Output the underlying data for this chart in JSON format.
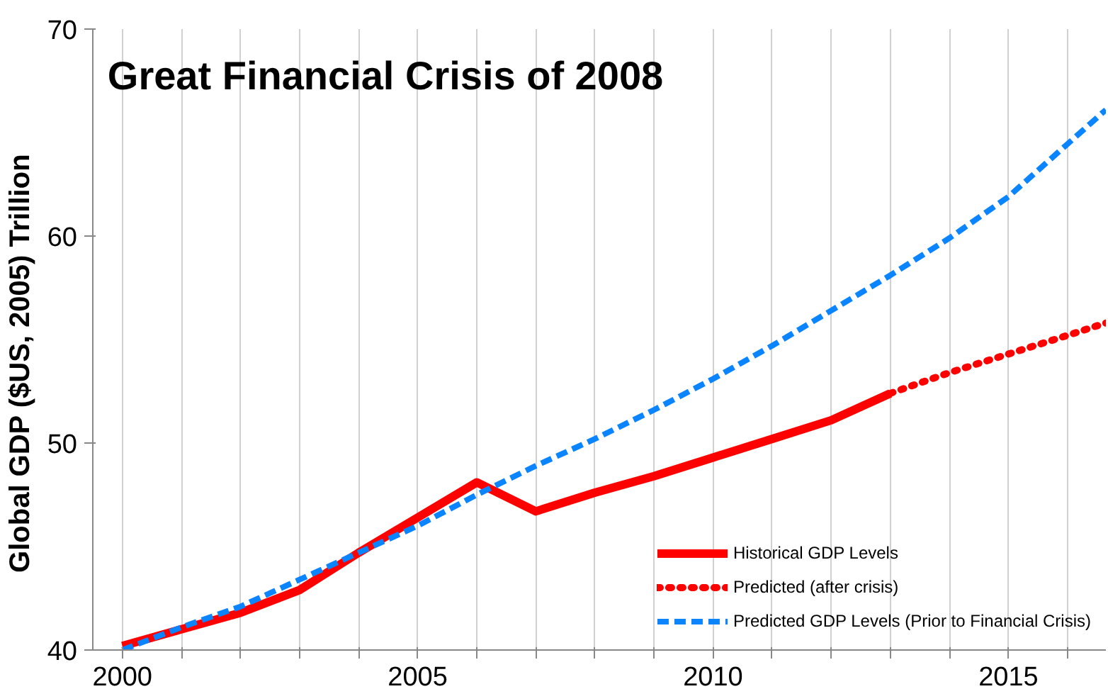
{
  "chart_data": {
    "type": "line",
    "title": "Great Financial Crisis of 2008",
    "ylabel": "Global GDP ($US, 2005)       Trillion",
    "xlim": [
      1999.5,
      2016.65
    ],
    "ylim": [
      40,
      70
    ],
    "xticks": [
      2000,
      {
        "value": 2001,
        "label": null
      },
      {
        "value": 2002,
        "label": null
      },
      {
        "value": 2003,
        "label": null
      },
      {
        "value": 2004,
        "label": null
      },
      2005,
      {
        "value": 2006,
        "label": null
      },
      {
        "value": 2007,
        "label": null
      },
      {
        "value": 2008,
        "label": null
      },
      {
        "value": 2009,
        "label": null
      },
      2010,
      {
        "value": 2011,
        "label": null
      },
      {
        "value": 2012,
        "label": null
      },
      {
        "value": 2013,
        "label": null
      },
      {
        "value": 2014,
        "label": null
      },
      2015,
      {
        "value": 2016,
        "label": null
      }
    ],
    "yticks": [
      40,
      50,
      60,
      70
    ],
    "grid": "x",
    "legend": "bottom right",
    "series": [
      {
        "name": "Historical GDP Levels",
        "color": "#ff0000",
        "line_style": "solid",
        "x": [
          2000,
          2001,
          2002,
          2003,
          2004,
          2005,
          2006,
          2007,
          2008,
          2009,
          2010,
          2011,
          2012,
          2013
        ],
        "values": [
          40.2,
          41.0,
          41.8,
          42.9,
          44.7,
          46.4,
          48.1,
          46.7,
          47.6,
          48.4,
          49.3,
          50.2,
          51.1,
          52.4
        ]
      },
      {
        "name": "Predicted (after crisis)",
        "color": "#ff0000",
        "line_style": "dotted",
        "x": [
          2013,
          2014,
          2015,
          2016,
          2016.65
        ],
        "values": [
          52.4,
          53.4,
          54.3,
          55.2,
          55.8
        ]
      },
      {
        "name": "Predicted GDP Levels (Prior to Financial Crisis)",
        "color": "#0a84ff",
        "line_style": "dashed",
        "x": [
          2000,
          2001,
          2002,
          2003,
          2004,
          2005,
          2006,
          2007,
          2008,
          2009,
          2010,
          2011,
          2012,
          2013,
          2014,
          2015,
          2016.65
        ],
        "values": [
          40.0,
          41.1,
          42.1,
          43.4,
          44.7,
          46.0,
          47.5,
          48.9,
          50.2,
          51.6,
          53.1,
          54.7,
          56.4,
          58.1,
          59.9,
          61.9,
          66.1
        ]
      }
    ]
  }
}
